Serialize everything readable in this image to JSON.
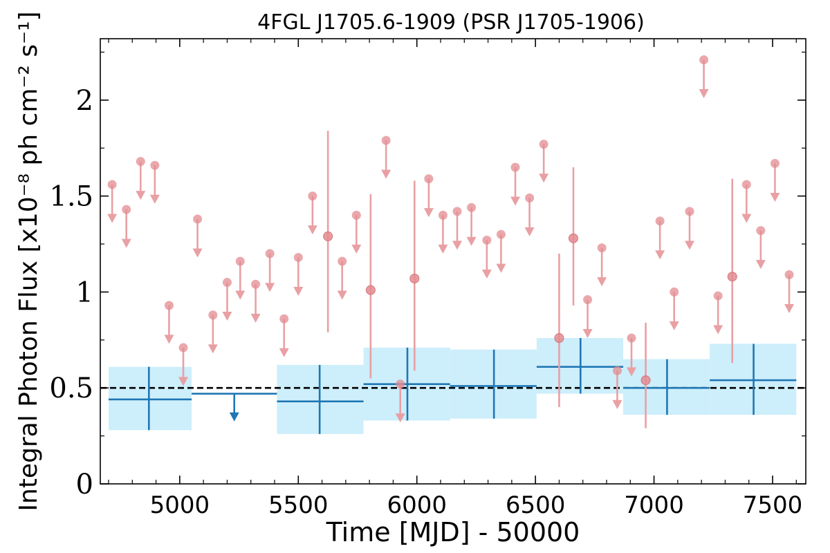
{
  "chart_data": {
    "type": "scatter",
    "title": "4FGL J1705.6-1909 (PSR J1705-1906)",
    "xlabel": "Time [MJD] - 50000",
    "ylabel": "Integral Photon Flux [x10⁻⁸ ph cm⁻² s⁻¹]",
    "xlim": [
      4665,
      7640
    ],
    "ylim": [
      0,
      2.32
    ],
    "xticks": [
      5000,
      5500,
      6000,
      6500,
      7000,
      7500
    ],
    "xtick_labels": [
      "5000",
      "5500",
      "6000",
      "6500",
      "7000",
      "7500"
    ],
    "yticks": [
      0,
      0.5,
      1,
      1.5,
      2
    ],
    "ytick_labels": [
      "0",
      "0.5",
      "1",
      "1.5",
      "2"
    ],
    "grid": false,
    "reference_line": {
      "y": 0.5,
      "style": "dashed",
      "color": "#000000"
    },
    "colors": {
      "short_bins": "#e8a0a4",
      "short_bins_marker": "#e38b90",
      "long_bins": "#1f77b4",
      "long_bins_band": "#cdeefb"
    },
    "series": [
      {
        "kind": "long_bins_measured",
        "points": [
          {
            "x": 4870,
            "xlo": 4700,
            "xhi": 5050,
            "y": 0.44,
            "ylo": 0.28,
            "yhi": 0.61
          },
          {
            "x": 5590,
            "xlo": 5410,
            "xhi": 5775,
            "y": 0.43,
            "ylo": 0.26,
            "yhi": 0.62
          },
          {
            "x": 5960,
            "xlo": 5775,
            "xhi": 6140,
            "y": 0.52,
            "ylo": 0.33,
            "yhi": 0.71
          },
          {
            "x": 6325,
            "xlo": 6140,
            "xhi": 6505,
            "y": 0.51,
            "ylo": 0.34,
            "yhi": 0.7
          },
          {
            "x": 6690,
            "xlo": 6505,
            "xhi": 6870,
            "y": 0.61,
            "ylo": 0.47,
            "yhi": 0.76
          },
          {
            "x": 7055,
            "xlo": 6870,
            "xhi": 7235,
            "y": 0.5,
            "ylo": 0.36,
            "yhi": 0.65
          },
          {
            "x": 7420,
            "xlo": 7235,
            "xhi": 7600,
            "y": 0.54,
            "ylo": 0.36,
            "yhi": 0.73
          }
        ]
      },
      {
        "kind": "long_bins_upper_limit",
        "points": [
          {
            "x": 5230,
            "xlo": 5050,
            "xhi": 5410,
            "y": 0.47,
            "arrow_to": 0.34
          }
        ]
      },
      {
        "kind": "short_bins_upper_limit",
        "points": [
          {
            "x": 4715,
            "y": 1.56
          },
          {
            "x": 4775,
            "y": 1.43
          },
          {
            "x": 4835,
            "y": 1.68
          },
          {
            "x": 4895,
            "y": 1.66
          },
          {
            "x": 4955,
            "y": 0.93
          },
          {
            "x": 5015,
            "y": 0.71
          },
          {
            "x": 5075,
            "y": 1.38
          },
          {
            "x": 5140,
            "y": 0.88
          },
          {
            "x": 5200,
            "y": 1.05
          },
          {
            "x": 5255,
            "y": 1.16
          },
          {
            "x": 5320,
            "y": 1.04
          },
          {
            "x": 5380,
            "y": 1.2
          },
          {
            "x": 5440,
            "y": 0.86
          },
          {
            "x": 5500,
            "y": 1.18
          },
          {
            "x": 5560,
            "y": 1.5
          },
          {
            "x": 5685,
            "y": 1.16
          },
          {
            "x": 5745,
            "y": 1.4
          },
          {
            "x": 5870,
            "y": 1.79
          },
          {
            "x": 5930,
            "y": 0.52
          },
          {
            "x": 6050,
            "y": 1.59
          },
          {
            "x": 6110,
            "y": 1.4
          },
          {
            "x": 6170,
            "y": 1.42
          },
          {
            "x": 6230,
            "y": 1.44
          },
          {
            "x": 6295,
            "y": 1.27
          },
          {
            "x": 6355,
            "y": 1.3
          },
          {
            "x": 6415,
            "y": 1.65
          },
          {
            "x": 6475,
            "y": 1.49
          },
          {
            "x": 6535,
            "y": 1.77
          },
          {
            "x": 6720,
            "y": 0.96
          },
          {
            "x": 6780,
            "y": 1.23
          },
          {
            "x": 6845,
            "y": 0.59
          },
          {
            "x": 6905,
            "y": 0.76
          },
          {
            "x": 7025,
            "y": 1.37
          },
          {
            "x": 7085,
            "y": 1.0
          },
          {
            "x": 7150,
            "y": 1.42
          },
          {
            "x": 7210,
            "y": 2.21
          },
          {
            "x": 7270,
            "y": 0.98
          },
          {
            "x": 7390,
            "y": 1.56
          },
          {
            "x": 7450,
            "y": 1.32
          },
          {
            "x": 7510,
            "y": 1.67
          },
          {
            "x": 7570,
            "y": 1.09
          }
        ]
      },
      {
        "kind": "short_bins_measured",
        "points": [
          {
            "x": 5625,
            "y": 1.29,
            "ylo": 0.79,
            "yhi": 1.84
          },
          {
            "x": 5805,
            "y": 1.01,
            "ylo": 0.55,
            "yhi": 1.51
          },
          {
            "x": 5990,
            "y": 1.07,
            "ylo": 0.59,
            "yhi": 1.58
          },
          {
            "x": 6600,
            "y": 0.76,
            "ylo": 0.4,
            "yhi": 1.2
          },
          {
            "x": 6660,
            "y": 1.28,
            "ylo": 0.93,
            "yhi": 1.65
          },
          {
            "x": 6965,
            "y": 0.54,
            "ylo": 0.29,
            "yhi": 0.84
          },
          {
            "x": 7330,
            "y": 1.08,
            "ylo": 0.63,
            "yhi": 1.59
          }
        ]
      }
    ]
  }
}
